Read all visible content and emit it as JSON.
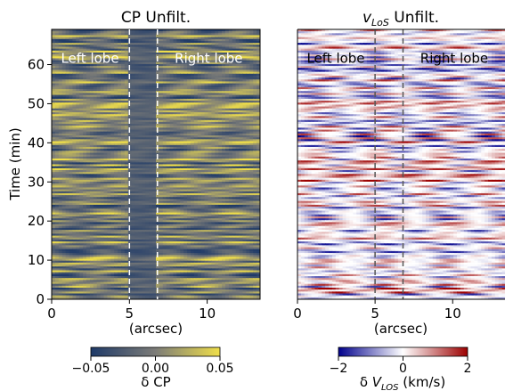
{
  "chart_data": [
    {
      "type": "heatmap",
      "title": "CP Unfilt.",
      "xlabel": "(arcsec)",
      "ylabel": "Time (min)",
      "xlim": [
        0,
        13.4
      ],
      "ylim": [
        0,
        69
      ],
      "xticks": [
        0,
        5,
        10
      ],
      "yticks": [
        0,
        10,
        20,
        30,
        40,
        50,
        60
      ],
      "divider_lines": [
        5.0,
        6.8
      ],
      "annotations": [
        "Left lobe",
        "Right lobe"
      ],
      "colorbar": {
        "label": "δ CP",
        "range": [
          -0.05,
          0.05
        ],
        "ticks": [
          -0.05,
          0.0,
          0.05
        ],
        "tick_labels": [
          "−0.05",
          "0.00",
          "0.05"
        ],
        "colormap": "cividis",
        "low_color": "#1f3a68",
        "mid_color": "#7c7c78",
        "high_color": "#f0df4a"
      }
    },
    {
      "type": "heatmap",
      "title": "vLoS Unfilt.",
      "title_italic": "v",
      "title_subscript": "LoS",
      "title_rest": " Unfilt.",
      "xlabel": "(arcsec)",
      "ylabel": "",
      "xlim": [
        0,
        13.4
      ],
      "ylim": [
        0,
        69
      ],
      "xticks": [
        0,
        5,
        10
      ],
      "divider_lines": [
        5.0,
        6.8
      ],
      "annotations": [
        "Left lobe",
        "Right lobe"
      ],
      "colorbar": {
        "label": "δ VLOS (km/s)",
        "label_prefix": "δ ",
        "label_italic": "V",
        "label_subscript": "LOS",
        "label_rest": " (km/s)",
        "range": [
          -2,
          2
        ],
        "ticks": [
          -2,
          0,
          2
        ],
        "tick_labels": [
          "−2",
          "0",
          "2"
        ],
        "colormap": "seismic",
        "low_color": "#00008c",
        "mid_color": "#ffffff",
        "high_color": "#9c0000"
      }
    }
  ]
}
